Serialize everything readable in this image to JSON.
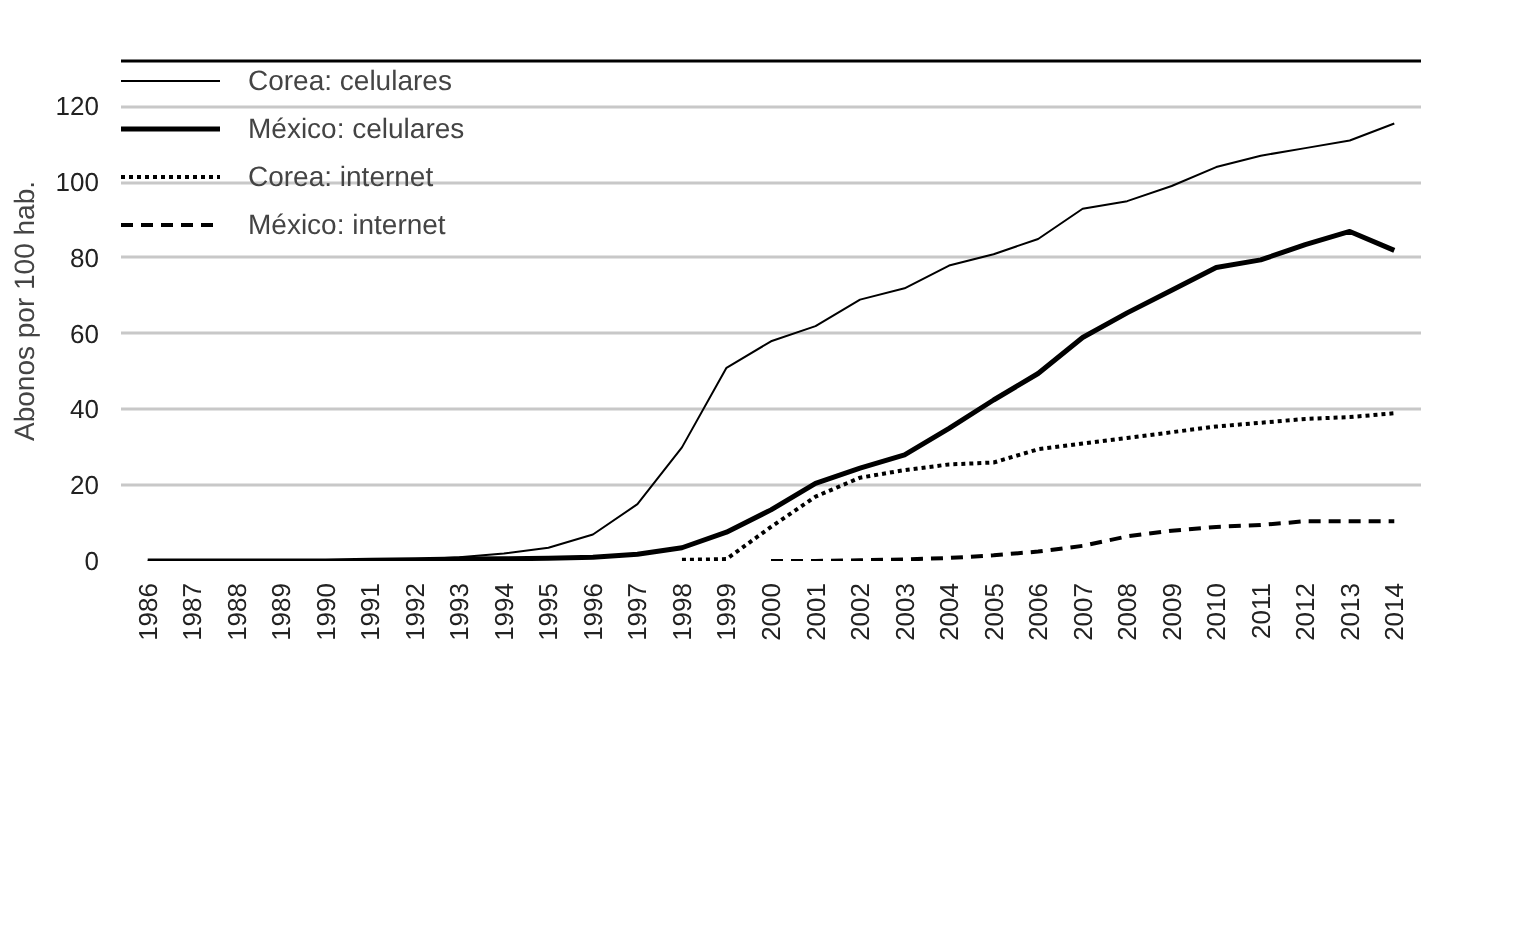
{
  "chart_data": {
    "type": "line",
    "ylabel": "Abonos por 100 hab.",
    "categories": [
      "1986",
      "1987",
      "1988",
      "1989",
      "1990",
      "1991",
      "1992",
      "1993",
      "1994",
      "1995",
      "1996",
      "1997",
      "1998",
      "1999",
      "2000",
      "2001",
      "2002",
      "2003",
      "2004",
      "2005",
      "2006",
      "2007",
      "2008",
      "2009",
      "2010",
      "2011",
      "2012",
      "2013",
      "2014"
    ],
    "series": [
      {
        "name": "Corea: celulares",
        "color": "#000000",
        "line_style": "solid",
        "values": [
          0,
          0,
          0,
          0,
          0.1,
          0.2,
          0.4,
          1,
          2,
          3.5,
          7,
          15,
          30,
          51,
          58,
          62,
          69,
          72,
          78,
          81,
          85,
          93,
          95,
          99,
          104,
          107,
          109,
          111,
          115.5
        ]
      },
      {
        "name": "México: celulares",
        "color": "#000000",
        "line_style": "solid",
        "values": [
          0,
          0,
          0,
          0,
          0,
          0.2,
          0.3,
          0.5,
          0.6,
          0.7,
          1,
          1.8,
          3.5,
          7.6,
          13.5,
          20.5,
          24.5,
          28,
          35,
          42.5,
          49.5,
          59,
          65.5,
          71.5,
          77.5,
          79.5,
          83.5,
          87,
          82
        ]
      },
      {
        "name": "Corea: internet",
        "color": "#000000",
        "line_style": "dotted",
        "values": [
          null,
          null,
          null,
          null,
          null,
          null,
          null,
          null,
          null,
          null,
          null,
          null,
          0.3,
          0.5,
          9,
          17,
          22,
          24,
          25.5,
          26,
          29.5,
          31,
          32.5,
          34,
          35.5,
          36.5,
          37.5,
          38,
          39
        ]
      },
      {
        "name": "México: internet",
        "color": "#000000",
        "line_style": "dashed",
        "values": [
          null,
          null,
          null,
          null,
          null,
          null,
          null,
          null,
          null,
          null,
          null,
          null,
          null,
          null,
          0,
          0,
          0.2,
          0.4,
          0.8,
          1.5,
          2.5,
          4,
          6.5,
          8,
          9,
          9.5,
          10.5,
          10.5,
          10.5
        ]
      }
    ],
    "ylim": [
      0,
      132
    ],
    "yticks": [
      0,
      20,
      40,
      60,
      80,
      100,
      120
    ],
    "grid": "y",
    "legend": "top left",
    "marker": "none"
  }
}
